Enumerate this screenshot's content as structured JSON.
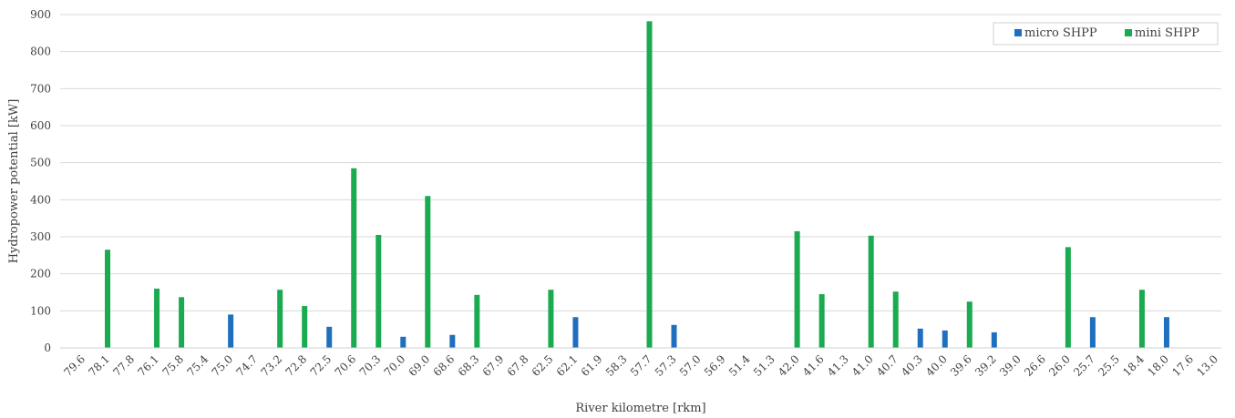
{
  "chart_data": {
    "type": "bar",
    "xlabel": "River kilometre [rkm]",
    "ylabel": "Hydropower potential [kW]",
    "ylim": [
      0,
      900
    ],
    "yticks": [
      0,
      100,
      200,
      300,
      400,
      500,
      600,
      700,
      800,
      900
    ],
    "grid": true,
    "legend_position": "top-right",
    "categories": [
      "79.6",
      "78.1",
      "77.8",
      "76.1",
      "75.8",
      "75.4",
      "75.0",
      "74.7",
      "73.2",
      "72.8",
      "72.5",
      "70.6",
      "70.3",
      "70.0",
      "69.0",
      "68.6",
      "68.3",
      "67.9",
      "67.8",
      "62.5",
      "62.1",
      "61.9",
      "58.3",
      "57.7",
      "57.3",
      "57.0",
      "56.9",
      "51.4",
      "51.3",
      "42.0",
      "41.6",
      "41.3",
      "41.0",
      "40.7",
      "40.3",
      "40.0",
      "39.6",
      "39.2",
      "39.0",
      "26.6",
      "26.0",
      "25.7",
      "25.5",
      "18.4",
      "18.0",
      "17.6",
      "13.0"
    ],
    "series": [
      {
        "name": "micro SHPP",
        "color": "#1f6fbf",
        "values": [
          0,
          0,
          0,
          0,
          0,
          0,
          90,
          0,
          0,
          0,
          57,
          0,
          0,
          30,
          0,
          35,
          0,
          0,
          0,
          0,
          83,
          0,
          0,
          0,
          62,
          0,
          0,
          0,
          0,
          0,
          0,
          0,
          0,
          0,
          52,
          47,
          0,
          42,
          0,
          0,
          0,
          83,
          0,
          0,
          83,
          0,
          0
        ]
      },
      {
        "name": "mini SHPP",
        "color": "#1aaa4f",
        "values": [
          0,
          265,
          0,
          160,
          137,
          0,
          0,
          0,
          157,
          113,
          0,
          485,
          305,
          0,
          410,
          0,
          143,
          0,
          0,
          157,
          0,
          0,
          0,
          882,
          0,
          0,
          0,
          0,
          0,
          315,
          145,
          0,
          303,
          152,
          0,
          0,
          125,
          0,
          0,
          0,
          272,
          0,
          0,
          157,
          0,
          0,
          0
        ]
      }
    ]
  }
}
